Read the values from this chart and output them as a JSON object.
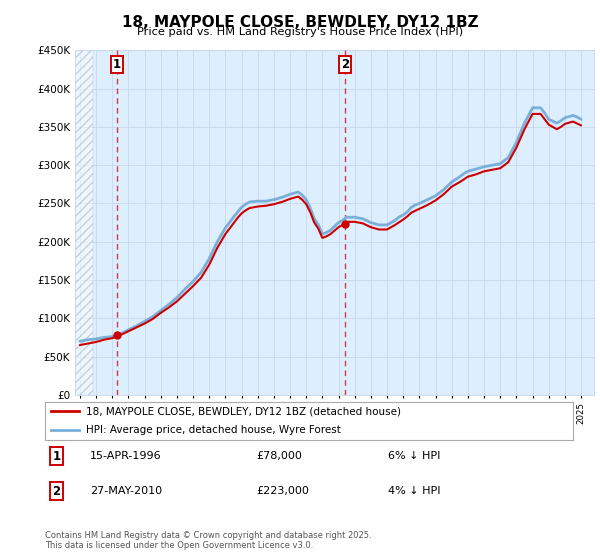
{
  "title": "18, MAYPOLE CLOSE, BEWDLEY, DY12 1BZ",
  "subtitle": "Price paid vs. HM Land Registry's House Price Index (HPI)",
  "legend_line1": "18, MAYPOLE CLOSE, BEWDLEY, DY12 1BZ (detached house)",
  "legend_line2": "HPI: Average price, detached house, Wyre Forest",
  "footer": "Contains HM Land Registry data © Crown copyright and database right 2025.\nThis data is licensed under the Open Government Licence v3.0.",
  "annotation1_label": "1",
  "annotation1_date": "15-APR-1996",
  "annotation1_price": "£78,000",
  "annotation1_hpi": "6% ↓ HPI",
  "annotation2_label": "2",
  "annotation2_date": "27-MAY-2010",
  "annotation2_price": "£223,000",
  "annotation2_hpi": "4% ↓ HPI",
  "ylim": [
    0,
    450000
  ],
  "xlim_start": 1993.7,
  "xlim_end": 2025.8,
  "red_color": "#cc0000",
  "blue_color": "#7aafda",
  "grid_color": "#c8d8e8",
  "background_color": "#ffffff",
  "plot_bg_color": "#ddeeff",
  "yticks": [
    0,
    50000,
    100000,
    150000,
    200000,
    250000,
    300000,
    350000,
    400000,
    450000
  ],
  "ytick_labels": [
    "£0",
    "£50K",
    "£100K",
    "£150K",
    "£200K",
    "£250K",
    "£300K",
    "£350K",
    "£400K",
    "£450K"
  ],
  "marker1_x": 1996.29,
  "marker1_y": 78000,
  "marker2_x": 2010.41,
  "marker2_y": 223000,
  "hatch_end": 1994.8,
  "hpi_data_x": [
    1994.0,
    1994.25,
    1994.5,
    1994.75,
    1995.0,
    1995.25,
    1995.5,
    1995.75,
    1996.0,
    1996.25,
    1996.5,
    1996.75,
    1997.0,
    1997.25,
    1997.5,
    1997.75,
    1998.0,
    1998.25,
    1998.5,
    1998.75,
    1999.0,
    1999.25,
    1999.5,
    1999.75,
    2000.0,
    2000.25,
    2000.5,
    2000.75,
    2001.0,
    2001.25,
    2001.5,
    2001.75,
    2002.0,
    2002.25,
    2002.5,
    2002.75,
    2003.0,
    2003.25,
    2003.5,
    2003.75,
    2004.0,
    2004.25,
    2004.5,
    2004.75,
    2005.0,
    2005.25,
    2005.5,
    2005.75,
    2006.0,
    2006.25,
    2006.5,
    2006.75,
    2007.0,
    2007.25,
    2007.5,
    2007.75,
    2008.0,
    2008.25,
    2008.5,
    2008.75,
    2009.0,
    2009.25,
    2009.5,
    2009.75,
    2010.0,
    2010.25,
    2010.5,
    2010.75,
    2011.0,
    2011.25,
    2011.5,
    2011.75,
    2012.0,
    2012.25,
    2012.5,
    2012.75,
    2013.0,
    2013.25,
    2013.5,
    2013.75,
    2014.0,
    2014.25,
    2014.5,
    2014.75,
    2015.0,
    2015.25,
    2015.5,
    2015.75,
    2016.0,
    2016.25,
    2016.5,
    2016.75,
    2017.0,
    2017.25,
    2017.5,
    2017.75,
    2018.0,
    2018.25,
    2018.5,
    2018.75,
    2019.0,
    2019.25,
    2019.5,
    2019.75,
    2020.0,
    2020.25,
    2020.5,
    2020.75,
    2021.0,
    2021.25,
    2021.5,
    2021.75,
    2022.0,
    2022.25,
    2022.5,
    2022.75,
    2023.0,
    2023.25,
    2023.5,
    2023.75,
    2024.0,
    2024.25,
    2024.5,
    2024.75,
    2025.0
  ],
  "hpi_data_y": [
    70000,
    71000,
    72000,
    72500,
    73000,
    74000,
    75000,
    75500,
    76000,
    78000,
    80000,
    82000,
    85000,
    87500,
    90000,
    93000,
    96000,
    99000,
    102000,
    106000,
    110000,
    114000,
    118000,
    122500,
    127000,
    132500,
    138000,
    143000,
    148000,
    154000,
    160000,
    169000,
    178000,
    189000,
    200000,
    209000,
    218000,
    225000,
    232000,
    238500,
    245000,
    249000,
    252000,
    252500,
    253000,
    253000,
    253000,
    254000,
    255000,
    256500,
    258000,
    260000,
    262000,
    263500,
    265000,
    261000,
    255000,
    244000,
    230000,
    222000,
    210000,
    212000,
    215000,
    220000,
    225000,
    228000,
    232000,
    232000,
    232000,
    231000,
    230000,
    227500,
    225000,
    223500,
    222000,
    222000,
    222000,
    225000,
    228000,
    232500,
    235000,
    239000,
    245000,
    248000,
    250000,
    252500,
    255000,
    257500,
    260000,
    264000,
    268000,
    273000,
    278000,
    281500,
    285000,
    289000,
    292000,
    293500,
    295000,
    296500,
    298000,
    299000,
    300000,
    301000,
    302000,
    306000,
    310000,
    320000,
    330000,
    342500,
    355000,
    365000,
    375000,
    375000,
    375000,
    368000,
    360000,
    357500,
    355000,
    358000,
    362000,
    363500,
    365000,
    363000,
    360000
  ],
  "price_data_x": [
    1994.0,
    1994.25,
    1994.5,
    1994.75,
    1995.0,
    1995.25,
    1995.5,
    1995.75,
    1996.0,
    1996.25,
    1996.5,
    1996.75,
    1997.0,
    1997.25,
    1997.5,
    1997.75,
    1998.0,
    1998.25,
    1998.5,
    1998.75,
    1999.0,
    1999.25,
    1999.5,
    1999.75,
    2000.0,
    2000.25,
    2000.5,
    2000.75,
    2001.0,
    2001.25,
    2001.5,
    2001.75,
    2002.0,
    2002.25,
    2002.5,
    2002.75,
    2003.0,
    2003.25,
    2003.5,
    2003.75,
    2004.0,
    2004.25,
    2004.5,
    2004.75,
    2005.0,
    2005.25,
    2005.5,
    2005.75,
    2006.0,
    2006.25,
    2006.5,
    2006.75,
    2007.0,
    2007.25,
    2007.5,
    2007.75,
    2008.0,
    2008.25,
    2008.5,
    2008.75,
    2009.0,
    2009.25,
    2009.5,
    2009.75,
    2010.0,
    2010.25,
    2010.5,
    2010.75,
    2011.0,
    2011.25,
    2011.5,
    2011.75,
    2012.0,
    2012.25,
    2012.5,
    2012.75,
    2013.0,
    2013.25,
    2013.5,
    2013.75,
    2014.0,
    2014.25,
    2014.5,
    2014.75,
    2015.0,
    2015.25,
    2015.5,
    2015.75,
    2016.0,
    2016.25,
    2016.5,
    2016.75,
    2017.0,
    2017.25,
    2017.5,
    2017.75,
    2018.0,
    2018.25,
    2018.5,
    2018.75,
    2019.0,
    2019.25,
    2019.5,
    2019.75,
    2020.0,
    2020.25,
    2020.5,
    2020.75,
    2021.0,
    2021.25,
    2021.5,
    2021.75,
    2022.0,
    2022.25,
    2022.5,
    2022.75,
    2023.0,
    2023.25,
    2023.5,
    2023.75,
    2024.0,
    2024.25,
    2024.5,
    2024.75,
    2025.0
  ],
  "price_data_y": [
    65000,
    66000,
    67000,
    68000,
    69000,
    70500,
    72000,
    73000,
    74000,
    76000,
    78000,
    80500,
    83000,
    85500,
    88000,
    90500,
    93000,
    96000,
    99000,
    103000,
    107000,
    110500,
    114000,
    118000,
    122000,
    127000,
    132000,
    137000,
    142000,
    147500,
    153000,
    161500,
    170000,
    181000,
    192000,
    201000,
    210000,
    217000,
    224000,
    231000,
    237000,
    241000,
    244000,
    245000,
    246000,
    246500,
    247000,
    248000,
    249000,
    250500,
    252000,
    254000,
    256000,
    257500,
    259000,
    255000,
    249000,
    238500,
    225000,
    217000,
    205000,
    207000,
    210000,
    214500,
    219000,
    222000,
    226000,
    226000,
    226000,
    225000,
    224000,
    221500,
    219000,
    217500,
    216000,
    216000,
    216000,
    219000,
    222000,
    225500,
    229000,
    233000,
    238000,
    240500,
    243000,
    245500,
    248000,
    251000,
    254000,
    258000,
    262000,
    267000,
    272000,
    275000,
    278000,
    281500,
    285000,
    286500,
    288000,
    290000,
    292000,
    293000,
    294000,
    295000,
    296000,
    300000,
    304000,
    313500,
    323000,
    335000,
    347000,
    357000,
    367000,
    367000,
    367000,
    360000,
    353000,
    350000,
    347000,
    350000,
    354000,
    355500,
    357000,
    354500,
    352000
  ]
}
